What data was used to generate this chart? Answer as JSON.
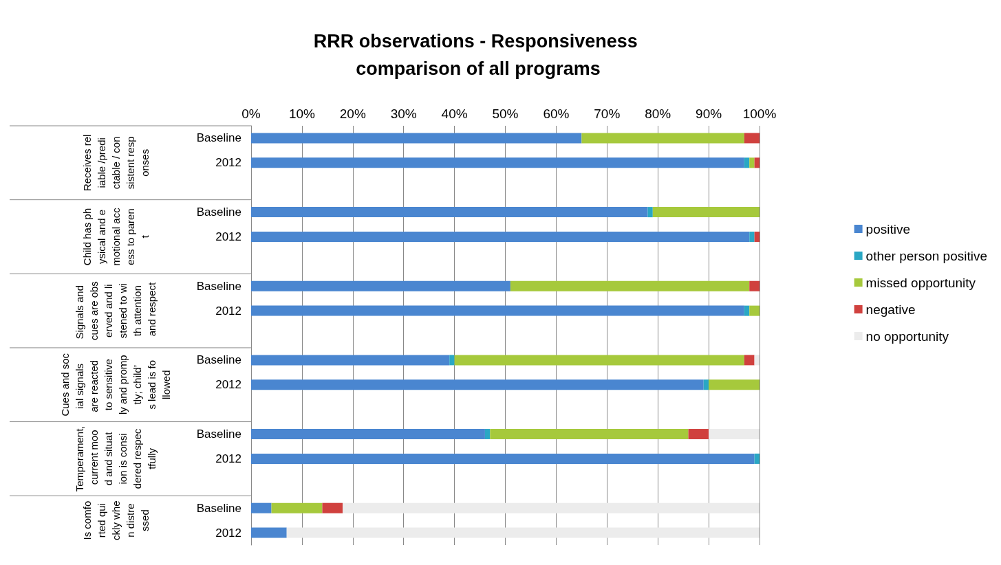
{
  "chart_data": {
    "type": "bar",
    "orientation": "horizontal",
    "stacked": true,
    "title": "RRR observations - Responsiveness comparison of all programs",
    "categories": [
      "Baseline",
      "2012",
      null,
      "Baseline",
      "2012",
      null,
      "Baseline",
      "2012",
      null,
      "Baseline",
      "2012",
      null,
      "Baseline",
      "2012",
      null,
      "Baseline",
      "2012"
    ],
    "series": [
      {
        "name": "positive",
        "color": "#4a86d0",
        "values": [
          65,
          97,
          null,
          78,
          98,
          null,
          51,
          97,
          null,
          39,
          89,
          null,
          46,
          99,
          null,
          4,
          7
        ]
      },
      {
        "name": "other person positive",
        "color": "#2aa7c4",
        "values": [
          0,
          1,
          null,
          1,
          1,
          null,
          0,
          1,
          null,
          1,
          1,
          null,
          1,
          1,
          null,
          0,
          0
        ]
      },
      {
        "name": "missed opportunity",
        "color": "#a6c93c",
        "values": [
          32,
          1,
          null,
          21,
          0,
          null,
          47,
          2,
          null,
          57,
          10,
          null,
          39,
          0,
          null,
          10,
          0
        ]
      },
      {
        "name": "negative",
        "color": "#d0413e",
        "values": [
          3,
          1,
          null,
          0,
          1,
          null,
          2,
          0,
          null,
          2,
          0,
          null,
          4,
          0,
          null,
          4,
          0
        ]
      },
      {
        "name": "no opportunity",
        "color": "#ececec",
        "values": [
          0,
          0,
          null,
          0,
          0,
          null,
          0,
          0,
          null,
          1,
          0,
          null,
          10,
          0,
          null,
          82,
          93
        ]
      }
    ],
    "xlim": [
      0,
      100
    ],
    "xticks": [
      {
        "value": 0,
        "label": "0%"
      },
      {
        "value": 10,
        "label": "10%"
      },
      {
        "value": 20,
        "label": "20%"
      },
      {
        "value": 30,
        "label": "30%"
      },
      {
        "value": 40,
        "label": "40%"
      },
      {
        "value": 50,
        "label": "50%"
      },
      {
        "value": 60,
        "label": "60%"
      },
      {
        "value": 70,
        "label": "70%"
      },
      {
        "value": 80,
        "label": "80%"
      },
      {
        "value": 90,
        "label": "90%"
      },
      {
        "value": 100,
        "label": "100%"
      }
    ],
    "grid": "x",
    "legend": "right",
    "annotations": [
      "Receives reliable /predictable / consistent responses",
      "Child has physical and emotional access to parent",
      "Signals and cues are observed and listened to with attention and respect",
      "Cues and social signals are reacted to sensitively and promptly; child’s lead is followed",
      "Temperament, current mood and situation is considered respectfully",
      "Is comforted quickly when distressed"
    ]
  }
}
